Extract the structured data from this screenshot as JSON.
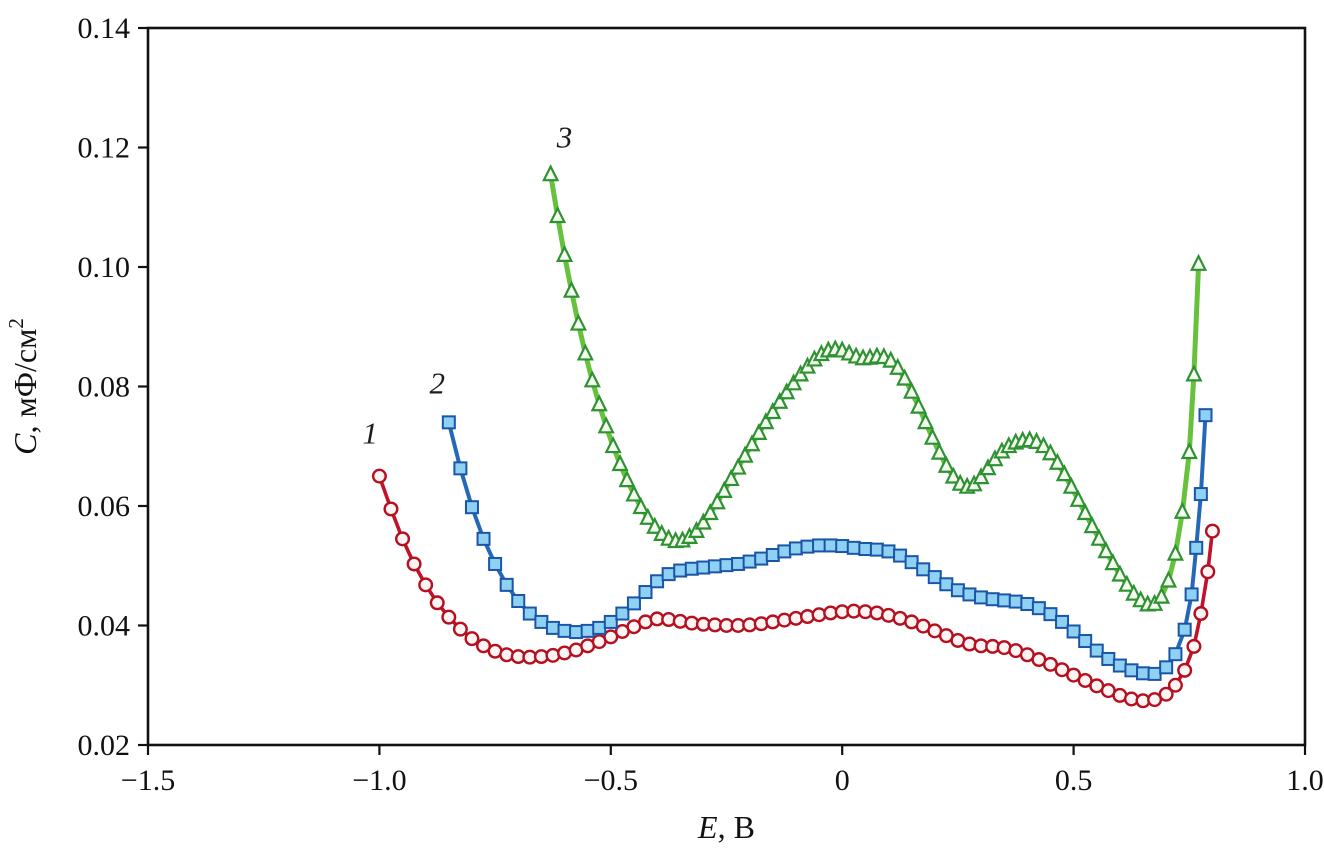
{
  "figure": {
    "background": "#ffffff",
    "axis_color": "#111111"
  },
  "chart_data": {
    "type": "line",
    "title": "",
    "x_label": {
      "var": "E",
      "rest": ", В"
    },
    "y_label": {
      "var": "C",
      "rest": ", мФ/см",
      "sup": "2"
    },
    "xlim": [
      -1.5,
      1.0
    ],
    "ylim": [
      0.02,
      0.14
    ],
    "grid": false,
    "legend": "none",
    "x_ticks": {
      "values": [
        -1.5,
        -1.0,
        -0.5,
        0,
        0.5,
        1.0
      ],
      "labels": [
        "−1.5",
        "−1.0",
        "−0.5",
        "0",
        "0.5",
        "1.0"
      ]
    },
    "y_ticks": {
      "values": [
        0.02,
        0.04,
        0.06,
        0.08,
        0.1,
        0.12,
        0.14
      ],
      "labels": [
        "0.02",
        "0.04",
        "0.06",
        "0.08",
        "0.10",
        "0.12",
        "0.14"
      ]
    },
    "series": [
      {
        "name": "1",
        "marker": "circle",
        "line_color": "#c01228",
        "line_width": 3.6,
        "marker_fill": "#fff4f4",
        "marker_stroke": "#b5101f",
        "marker_stroke_width": 2.4,
        "marker_size": 6.3,
        "label_pos": {
          "x": -1.02,
          "y": 0.0705
        },
        "points": [
          [
            -1.0,
            0.065
          ],
          [
            -0.975,
            0.0595
          ],
          [
            -0.95,
            0.0545
          ],
          [
            -0.925,
            0.0503
          ],
          [
            -0.9,
            0.0468
          ],
          [
            -0.875,
            0.0438
          ],
          [
            -0.85,
            0.0414
          ],
          [
            -0.825,
            0.0394
          ],
          [
            -0.8,
            0.0378
          ],
          [
            -0.775,
            0.0366
          ],
          [
            -0.75,
            0.0357
          ],
          [
            -0.725,
            0.0351
          ],
          [
            -0.7,
            0.0348
          ],
          [
            -0.675,
            0.0347
          ],
          [
            -0.65,
            0.0348
          ],
          [
            -0.625,
            0.035
          ],
          [
            -0.6,
            0.0354
          ],
          [
            -0.575,
            0.0359
          ],
          [
            -0.55,
            0.0366
          ],
          [
            -0.525,
            0.0373
          ],
          [
            -0.5,
            0.0381
          ],
          [
            -0.475,
            0.039
          ],
          [
            -0.45,
            0.0398
          ],
          [
            -0.425,
            0.0406
          ],
          [
            -0.4,
            0.0411
          ],
          [
            -0.375,
            0.041
          ],
          [
            -0.35,
            0.0407
          ],
          [
            -0.325,
            0.0404
          ],
          [
            -0.3,
            0.0402
          ],
          [
            -0.275,
            0.0401
          ],
          [
            -0.25,
            0.04
          ],
          [
            -0.225,
            0.04
          ],
          [
            -0.2,
            0.0401
          ],
          [
            -0.175,
            0.0403
          ],
          [
            -0.15,
            0.0406
          ],
          [
            -0.125,
            0.0409
          ],
          [
            -0.1,
            0.0412
          ],
          [
            -0.075,
            0.0415
          ],
          [
            -0.05,
            0.0418
          ],
          [
            -0.025,
            0.0421
          ],
          [
            0.0,
            0.0423
          ],
          [
            0.025,
            0.0424
          ],
          [
            0.05,
            0.0423
          ],
          [
            0.075,
            0.0421
          ],
          [
            0.1,
            0.0417
          ],
          [
            0.125,
            0.0412
          ],
          [
            0.15,
            0.0406
          ],
          [
            0.175,
            0.0399
          ],
          [
            0.2,
            0.0391
          ],
          [
            0.225,
            0.0383
          ],
          [
            0.25,
            0.0375
          ],
          [
            0.275,
            0.0369
          ],
          [
            0.3,
            0.0366
          ],
          [
            0.325,
            0.0365
          ],
          [
            0.35,
            0.0363
          ],
          [
            0.375,
            0.0358
          ],
          [
            0.4,
            0.0351
          ],
          [
            0.425,
            0.0343
          ],
          [
            0.45,
            0.0335
          ],
          [
            0.475,
            0.0326
          ],
          [
            0.5,
            0.0317
          ],
          [
            0.525,
            0.0308
          ],
          [
            0.55,
            0.0299
          ],
          [
            0.575,
            0.0291
          ],
          [
            0.6,
            0.0283
          ],
          [
            0.625,
            0.0277
          ],
          [
            0.65,
            0.0274
          ],
          [
            0.675,
            0.0276
          ],
          [
            0.7,
            0.0285
          ],
          [
            0.72,
            0.03
          ],
          [
            0.74,
            0.0325
          ],
          [
            0.76,
            0.0365
          ],
          [
            0.775,
            0.042
          ],
          [
            0.79,
            0.049
          ],
          [
            0.8,
            0.0558
          ]
        ]
      },
      {
        "name": "2",
        "marker": "square",
        "line_color": "#2468b8",
        "line_width": 4,
        "marker_fill": "#8ed1f2",
        "marker_stroke": "#1a55a8",
        "marker_stroke_width": 2,
        "marker_size": 6,
        "label_pos": {
          "x": -0.875,
          "y": 0.0788
        },
        "points": [
          [
            -0.85,
            0.074
          ],
          [
            -0.825,
            0.0663
          ],
          [
            -0.8,
            0.0598
          ],
          [
            -0.775,
            0.0545
          ],
          [
            -0.75,
            0.0503
          ],
          [
            -0.725,
            0.0468
          ],
          [
            -0.7,
            0.0441
          ],
          [
            -0.675,
            0.042
          ],
          [
            -0.65,
            0.0406
          ],
          [
            -0.625,
            0.0396
          ],
          [
            -0.6,
            0.0391
          ],
          [
            -0.575,
            0.0389
          ],
          [
            -0.55,
            0.0391
          ],
          [
            -0.525,
            0.0396
          ],
          [
            -0.5,
            0.0406
          ],
          [
            -0.475,
            0.042
          ],
          [
            -0.45,
            0.0437
          ],
          [
            -0.425,
            0.0456
          ],
          [
            -0.4,
            0.0474
          ],
          [
            -0.375,
            0.0486
          ],
          [
            -0.35,
            0.0492
          ],
          [
            -0.325,
            0.0495
          ],
          [
            -0.3,
            0.0497
          ],
          [
            -0.275,
            0.0499
          ],
          [
            -0.25,
            0.0501
          ],
          [
            -0.225,
            0.0503
          ],
          [
            -0.2,
            0.0507
          ],
          [
            -0.175,
            0.0512
          ],
          [
            -0.15,
            0.0518
          ],
          [
            -0.125,
            0.0524
          ],
          [
            -0.1,
            0.0529
          ],
          [
            -0.075,
            0.0532
          ],
          [
            -0.05,
            0.0534
          ],
          [
            -0.025,
            0.0534
          ],
          [
            0.0,
            0.0533
          ],
          [
            0.025,
            0.053
          ],
          [
            0.05,
            0.0528
          ],
          [
            0.075,
            0.0527
          ],
          [
            0.1,
            0.0524
          ],
          [
            0.125,
            0.0517
          ],
          [
            0.15,
            0.0506
          ],
          [
            0.175,
            0.0494
          ],
          [
            0.2,
            0.0481
          ],
          [
            0.225,
            0.0469
          ],
          [
            0.25,
            0.0459
          ],
          [
            0.275,
            0.0452
          ],
          [
            0.3,
            0.0447
          ],
          [
            0.325,
            0.0444
          ],
          [
            0.35,
            0.0442
          ],
          [
            0.375,
            0.044
          ],
          [
            0.4,
            0.0436
          ],
          [
            0.425,
            0.0429
          ],
          [
            0.45,
            0.0419
          ],
          [
            0.475,
            0.0406
          ],
          [
            0.5,
            0.039
          ],
          [
            0.525,
            0.0374
          ],
          [
            0.55,
            0.0358
          ],
          [
            0.575,
            0.0344
          ],
          [
            0.6,
            0.0333
          ],
          [
            0.625,
            0.0325
          ],
          [
            0.65,
            0.032
          ],
          [
            0.675,
            0.0319
          ],
          [
            0.7,
            0.033
          ],
          [
            0.72,
            0.0352
          ],
          [
            0.74,
            0.0393
          ],
          [
            0.755,
            0.0452
          ],
          [
            0.765,
            0.053
          ],
          [
            0.775,
            0.062
          ],
          [
            0.785,
            0.0752
          ]
        ]
      },
      {
        "name": "3",
        "marker": "triangle",
        "line_color": "#66c23b",
        "line_width": 5,
        "marker_fill": "#f4fbef",
        "marker_stroke": "#2f9232",
        "marker_stroke_width": 2.2,
        "marker_size": 6.8,
        "label_pos": {
          "x": -0.6,
          "y": 0.12
        },
        "points": [
          [
            -0.63,
            0.1155
          ],
          [
            -0.615,
            0.1085
          ],
          [
            -0.6,
            0.102
          ],
          [
            -0.585,
            0.096
          ],
          [
            -0.57,
            0.0905
          ],
          [
            -0.555,
            0.0855
          ],
          [
            -0.54,
            0.081
          ],
          [
            -0.525,
            0.077
          ],
          [
            -0.51,
            0.0733
          ],
          [
            -0.495,
            0.07
          ],
          [
            -0.48,
            0.067
          ],
          [
            -0.465,
            0.0643
          ],
          [
            -0.45,
            0.0619
          ],
          [
            -0.435,
            0.0598
          ],
          [
            -0.42,
            0.058
          ],
          [
            -0.405,
            0.0565
          ],
          [
            -0.39,
            0.0553
          ],
          [
            -0.375,
            0.0545
          ],
          [
            -0.36,
            0.0541
          ],
          [
            -0.345,
            0.0542
          ],
          [
            -0.33,
            0.0548
          ],
          [
            -0.315,
            0.0558
          ],
          [
            -0.3,
            0.0572
          ],
          [
            -0.285,
            0.0588
          ],
          [
            -0.27,
            0.0606
          ],
          [
            -0.255,
            0.0625
          ],
          [
            -0.24,
            0.0645
          ],
          [
            -0.225,
            0.0664
          ],
          [
            -0.21,
            0.0684
          ],
          [
            -0.195,
            0.0703
          ],
          [
            -0.18,
            0.0722
          ],
          [
            -0.165,
            0.074
          ],
          [
            -0.15,
            0.0757
          ],
          [
            -0.135,
            0.0774
          ],
          [
            -0.12,
            0.079
          ],
          [
            -0.105,
            0.0805
          ],
          [
            -0.09,
            0.082
          ],
          [
            -0.075,
            0.0833
          ],
          [
            -0.06,
            0.0845
          ],
          [
            -0.045,
            0.0854
          ],
          [
            -0.03,
            0.086
          ],
          [
            -0.015,
            0.0862
          ],
          [
            0.0,
            0.086
          ],
          [
            0.015,
            0.0855
          ],
          [
            0.03,
            0.085
          ],
          [
            0.045,
            0.0847
          ],
          [
            0.06,
            0.0848
          ],
          [
            0.075,
            0.085
          ],
          [
            0.09,
            0.0849
          ],
          [
            0.105,
            0.0843
          ],
          [
            0.12,
            0.0831
          ],
          [
            0.135,
            0.0813
          ],
          [
            0.15,
            0.0791
          ],
          [
            0.165,
            0.0766
          ],
          [
            0.18,
            0.074
          ],
          [
            0.195,
            0.0714
          ],
          [
            0.21,
            0.0689
          ],
          [
            0.225,
            0.0667
          ],
          [
            0.24,
            0.0649
          ],
          [
            0.255,
            0.0637
          ],
          [
            0.27,
            0.0632
          ],
          [
            0.285,
            0.0636
          ],
          [
            0.3,
            0.0648
          ],
          [
            0.315,
            0.0663
          ],
          [
            0.33,
            0.0678
          ],
          [
            0.345,
            0.0691
          ],
          [
            0.36,
            0.07
          ],
          [
            0.375,
            0.0706
          ],
          [
            0.39,
            0.0709
          ],
          [
            0.405,
            0.071
          ],
          [
            0.42,
            0.0707
          ],
          [
            0.435,
            0.07
          ],
          [
            0.45,
            0.0688
          ],
          [
            0.465,
            0.0672
          ],
          [
            0.48,
            0.0653
          ],
          [
            0.495,
            0.0632
          ],
          [
            0.51,
            0.061
          ],
          [
            0.525,
            0.0588
          ],
          [
            0.54,
            0.0566
          ],
          [
            0.555,
            0.0545
          ],
          [
            0.57,
            0.0524
          ],
          [
            0.585,
            0.0504
          ],
          [
            0.6,
            0.0485
          ],
          [
            0.615,
            0.0468
          ],
          [
            0.63,
            0.0453
          ],
          [
            0.645,
            0.0442
          ],
          [
            0.66,
            0.0435
          ],
          [
            0.675,
            0.0436
          ],
          [
            0.69,
            0.0448
          ],
          [
            0.705,
            0.0475
          ],
          [
            0.72,
            0.052
          ],
          [
            0.735,
            0.059
          ],
          [
            0.75,
            0.069
          ],
          [
            0.76,
            0.082
          ],
          [
            0.77,
            0.1005
          ]
        ]
      }
    ]
  }
}
